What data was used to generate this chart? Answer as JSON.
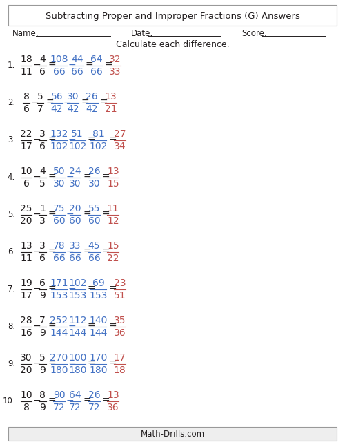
{
  "title": "Subtracting Proper and Improper Fractions (G) Answers",
  "instruction": "Calculate each difference.",
  "name_label": "Name:",
  "date_label": "Date:",
  "score_label": "Score:",
  "footer": "Math-Drills.com",
  "problems": [
    {
      "num": "1.",
      "q": [
        [
          "18",
          "11"
        ],
        [
          "4",
          "6"
        ]
      ],
      "step1": [
        [
          "108",
          "66"
        ],
        [
          "44",
          "66"
        ]
      ],
      "step2": [
        [
          "64",
          "66"
        ]
      ],
      "answer": [
        [
          "32",
          "33"
        ]
      ]
    },
    {
      "num": "2.",
      "q": [
        [
          "8",
          "6"
        ],
        [
          "5",
          "7"
        ]
      ],
      "step1": [
        [
          "56",
          "42"
        ],
        [
          "30",
          "42"
        ]
      ],
      "step2": [
        [
          "26",
          "42"
        ]
      ],
      "answer": [
        [
          "13",
          "21"
        ]
      ]
    },
    {
      "num": "3.",
      "q": [
        [
          "22",
          "17"
        ],
        [
          "3",
          "6"
        ]
      ],
      "step1": [
        [
          "132",
          "102"
        ],
        [
          "51",
          "102"
        ]
      ],
      "step2": [
        [
          "81",
          "102"
        ]
      ],
      "answer": [
        [
          "27",
          "34"
        ]
      ]
    },
    {
      "num": "4.",
      "q": [
        [
          "10",
          "6"
        ],
        [
          "4",
          "5"
        ]
      ],
      "step1": [
        [
          "50",
          "30"
        ],
        [
          "24",
          "30"
        ]
      ],
      "step2": [
        [
          "26",
          "30"
        ]
      ],
      "answer": [
        [
          "13",
          "15"
        ]
      ]
    },
    {
      "num": "5.",
      "q": [
        [
          "25",
          "20"
        ],
        [
          "1",
          "3"
        ]
      ],
      "step1": [
        [
          "75",
          "60"
        ],
        [
          "20",
          "60"
        ]
      ],
      "step2": [
        [
          "55",
          "60"
        ]
      ],
      "answer": [
        [
          "11",
          "12"
        ]
      ]
    },
    {
      "num": "6.",
      "q": [
        [
          "13",
          "11"
        ],
        [
          "3",
          "6"
        ]
      ],
      "step1": [
        [
          "78",
          "66"
        ],
        [
          "33",
          "66"
        ]
      ],
      "step2": [
        [
          "45",
          "66"
        ]
      ],
      "answer": [
        [
          "15",
          "22"
        ]
      ]
    },
    {
      "num": "7.",
      "q": [
        [
          "19",
          "17"
        ],
        [
          "6",
          "9"
        ]
      ],
      "step1": [
        [
          "171",
          "153"
        ],
        [
          "102",
          "153"
        ]
      ],
      "step2": [
        [
          "69",
          "153"
        ]
      ],
      "answer": [
        [
          "23",
          "51"
        ]
      ]
    },
    {
      "num": "8.",
      "q": [
        [
          "28",
          "16"
        ],
        [
          "7",
          "9"
        ]
      ],
      "step1": [
        [
          "252",
          "144"
        ],
        [
          "112",
          "144"
        ]
      ],
      "step2": [
        [
          "140",
          "144"
        ]
      ],
      "answer": [
        [
          "35",
          "36"
        ]
      ]
    },
    {
      "num": "9.",
      "q": [
        [
          "30",
          "20"
        ],
        [
          "5",
          "9"
        ]
      ],
      "step1": [
        [
          "270",
          "180"
        ],
        [
          "100",
          "180"
        ]
      ],
      "step2": [
        [
          "170",
          "180"
        ]
      ],
      "answer": [
        [
          "17",
          "18"
        ]
      ]
    },
    {
      "num": "10.",
      "q": [
        [
          "10",
          "8"
        ],
        [
          "8",
          "9"
        ]
      ],
      "step1": [
        [
          "90",
          "72"
        ],
        [
          "64",
          "72"
        ]
      ],
      "step2": [
        [
          "26",
          "72"
        ]
      ],
      "answer": [
        [
          "13",
          "36"
        ]
      ]
    }
  ],
  "color_black": "#231F20",
  "color_blue": "#4472C4",
  "color_red": "#C0504D",
  "bg_color": "#FFFFFF",
  "border_color": "#999999",
  "footer_bg": "#EEEEEE"
}
